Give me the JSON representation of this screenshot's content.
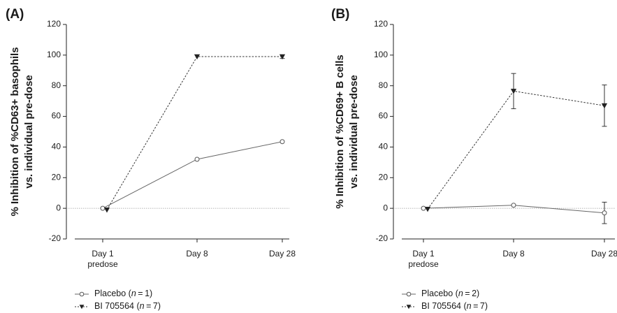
{
  "chart_data": [
    {
      "type": "line",
      "panel_label": "(A)",
      "ylabel": [
        "% Inhibition of %CD63+ basophils",
        "vs. individual pre-dose"
      ],
      "categories": [
        [
          "Day 1",
          "predose"
        ],
        [
          "Day 8"
        ],
        [
          "Day 28"
        ]
      ],
      "ylim": [
        -20,
        120
      ],
      "yticks": [
        -20,
        0,
        20,
        40,
        60,
        80,
        100,
        120
      ],
      "reference_line": 0,
      "series": [
        {
          "name": "Placebo",
          "n": "1",
          "marker": "circle-open",
          "line": "solid",
          "values": [
            0,
            32,
            43.5
          ],
          "errors": [
            0,
            0,
            0
          ]
        },
        {
          "name": "BI 705564",
          "n": "7",
          "marker": "triangle-down-filled",
          "line": "dotted",
          "values": [
            -1,
            99,
            99
          ],
          "errors": [
            0,
            0,
            1.2
          ]
        }
      ]
    },
    {
      "type": "line",
      "panel_label": "(B)",
      "ylabel": [
        "% Inhibition of %CD69+ B cells",
        "vs. individual pre-dose"
      ],
      "categories": [
        [
          "Day 1",
          "predose"
        ],
        [
          "Day 8"
        ],
        [
          "Day 28"
        ]
      ],
      "ylim": [
        -20,
        120
      ],
      "yticks": [
        -20,
        0,
        20,
        40,
        60,
        80,
        100,
        120
      ],
      "reference_line": 0,
      "series": [
        {
          "name": "Placebo",
          "n": "2",
          "marker": "circle-open",
          "line": "solid",
          "values": [
            0,
            2,
            -3
          ],
          "errors": [
            0,
            0,
            7
          ]
        },
        {
          "name": "BI 705564",
          "n": "7",
          "marker": "triangle-down-filled",
          "line": "dotted",
          "values": [
            -0.5,
            76.5,
            67
          ],
          "errors": [
            0,
            11.5,
            13.5
          ]
        }
      ]
    }
  ]
}
